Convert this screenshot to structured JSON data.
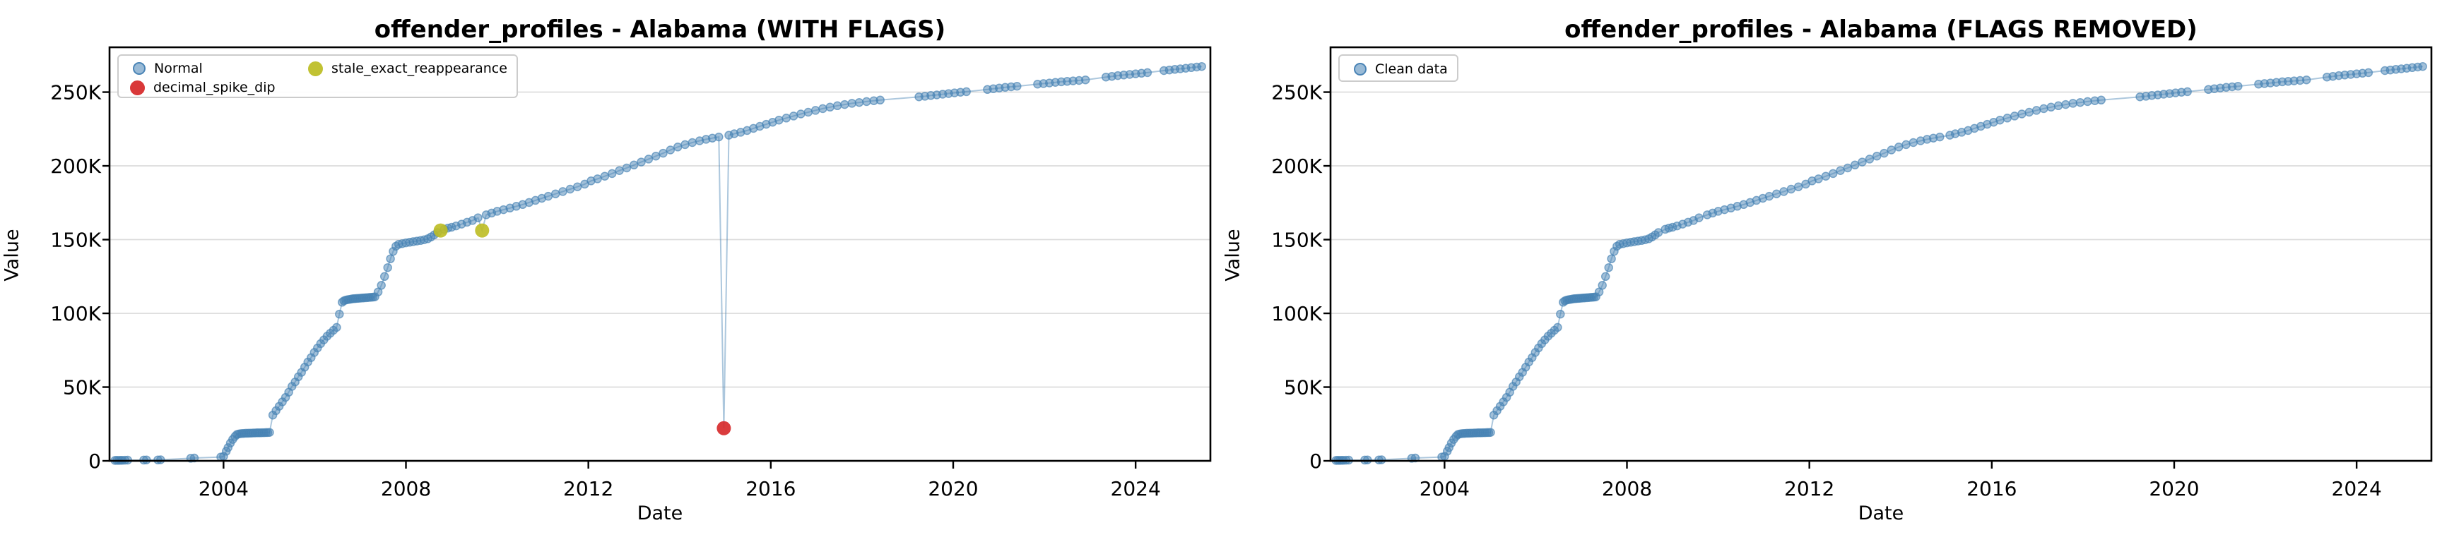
{
  "chart_data": {
    "type": "scatter",
    "xlabel": "Date",
    "ylabel": "Value",
    "x_range": [
      2001.5,
      2025.64
    ],
    "y_range_thousands": [
      0,
      280.4
    ],
    "grid": "horizontal-only",
    "legend_position": "upper-left",
    "x_ticks": [
      {
        "value": 2004,
        "label": "2004"
      },
      {
        "value": 2008,
        "label": "2008"
      },
      {
        "value": 2012,
        "label": "2012"
      },
      {
        "value": 2016,
        "label": "2016"
      },
      {
        "value": 2020,
        "label": "2020"
      },
      {
        "value": 2024,
        "label": "2024"
      }
    ],
    "y_ticks": [
      {
        "value": 0,
        "label": "0"
      },
      {
        "value": 50,
        "label": "50K"
      },
      {
        "value": 100,
        "label": "100K"
      },
      {
        "value": 150,
        "label": "150K"
      },
      {
        "value": 200,
        "label": "200K"
      },
      {
        "value": 250,
        "label": "250K"
      }
    ],
    "colors": {
      "normal": "#4682b4",
      "decimal_spike_dip": "#d62728",
      "stale_exact_reappearance": "#bcbd22",
      "line": "#4682b4",
      "grid": "#dcdcdc",
      "spine": "#000000",
      "text": "#000000",
      "legend_border": "#cccccc"
    },
    "points_thousands": [
      [
        2001.62,
        0.3
      ],
      [
        2001.66,
        0.35
      ],
      [
        2001.7,
        0.3
      ],
      [
        2001.74,
        0.4
      ],
      [
        2001.78,
        0.35
      ],
      [
        2001.84,
        0.45
      ],
      [
        2001.9,
        0.5
      ],
      [
        2002.25,
        0.55
      ],
      [
        2002.31,
        0.6
      ],
      [
        2002.56,
        0.6
      ],
      [
        2002.62,
        0.7
      ],
      [
        2003.28,
        1.7
      ],
      [
        2003.36,
        1.9
      ],
      [
        2003.94,
        2.6
      ],
      [
        2004.0,
        3.0
      ],
      [
        2004.06,
        6.5
      ],
      [
        2004.1,
        9.0
      ],
      [
        2004.15,
        12.0
      ],
      [
        2004.2,
        14.5
      ],
      [
        2004.25,
        16.5
      ],
      [
        2004.29,
        17.8
      ],
      [
        2004.33,
        18.2
      ],
      [
        2004.37,
        18.4
      ],
      [
        2004.41,
        18.5
      ],
      [
        2004.45,
        18.6
      ],
      [
        2004.49,
        18.7
      ],
      [
        2004.53,
        18.7
      ],
      [
        2004.57,
        18.8
      ],
      [
        2004.61,
        18.8
      ],
      [
        2004.65,
        18.9
      ],
      [
        2004.69,
        18.9
      ],
      [
        2004.73,
        19.0
      ],
      [
        2004.77,
        19.0
      ],
      [
        2004.81,
        19.0
      ],
      [
        2004.85,
        19.1
      ],
      [
        2004.89,
        19.1
      ],
      [
        2004.93,
        19.2
      ],
      [
        2004.97,
        19.2
      ],
      [
        2005.01,
        19.3
      ],
      [
        2005.08,
        31.0
      ],
      [
        2005.15,
        34.0
      ],
      [
        2005.22,
        37.0
      ],
      [
        2005.29,
        40.0
      ],
      [
        2005.36,
        43.0
      ],
      [
        2005.43,
        46.5
      ],
      [
        2005.5,
        50.5
      ],
      [
        2005.57,
        53.5
      ],
      [
        2005.64,
        57.0
      ],
      [
        2005.71,
        60.0
      ],
      [
        2005.78,
        63.5
      ],
      [
        2005.85,
        67.0
      ],
      [
        2005.92,
        70.0
      ],
      [
        2005.99,
        73.5
      ],
      [
        2006.06,
        76.5
      ],
      [
        2006.13,
        79.5
      ],
      [
        2006.2,
        82.0
      ],
      [
        2006.27,
        84.5
      ],
      [
        2006.34,
        86.5
      ],
      [
        2006.41,
        88.5
      ],
      [
        2006.48,
        90.5
      ],
      [
        2006.54,
        99.5
      ],
      [
        2006.6,
        107.5
      ],
      [
        2006.64,
        108.5
      ],
      [
        2006.68,
        109.0
      ],
      [
        2006.72,
        109.3
      ],
      [
        2006.76,
        109.5
      ],
      [
        2006.8,
        109.7
      ],
      [
        2006.84,
        109.9
      ],
      [
        2006.88,
        110.0
      ],
      [
        2006.92,
        110.1
      ],
      [
        2006.96,
        110.2
      ],
      [
        2007.0,
        110.3
      ],
      [
        2007.04,
        110.4
      ],
      [
        2007.08,
        110.5
      ],
      [
        2007.12,
        110.6
      ],
      [
        2007.16,
        110.7
      ],
      [
        2007.2,
        110.8
      ],
      [
        2007.24,
        110.9
      ],
      [
        2007.28,
        111.0
      ],
      [
        2007.32,
        111.2
      ],
      [
        2007.39,
        114.5
      ],
      [
        2007.46,
        119.0
      ],
      [
        2007.53,
        125.0
      ],
      [
        2007.6,
        131.0
      ],
      [
        2007.66,
        137.0
      ],
      [
        2007.72,
        142.0
      ],
      [
        2007.78,
        145.5
      ],
      [
        2007.84,
        146.8
      ],
      [
        2007.92,
        147.3
      ],
      [
        2008.0,
        147.8
      ],
      [
        2008.08,
        148.2
      ],
      [
        2008.16,
        148.6
      ],
      [
        2008.24,
        149.0
      ],
      [
        2008.32,
        149.4
      ],
      [
        2008.4,
        149.9
      ],
      [
        2008.48,
        150.6
      ],
      [
        2008.55,
        151.8
      ],
      [
        2008.62,
        153.2
      ],
      [
        2008.69,
        154.8
      ],
      [
        2008.84,
        157.0
      ],
      [
        2008.92,
        157.8
      ],
      [
        2009.0,
        158.4
      ],
      [
        2009.1,
        159.3
      ],
      [
        2009.22,
        160.5
      ],
      [
        2009.34,
        161.8
      ],
      [
        2009.46,
        163.0
      ],
      [
        2009.58,
        164.8
      ],
      [
        2009.76,
        166.8
      ],
      [
        2009.88,
        168.0
      ],
      [
        2010.0,
        169.2
      ],
      [
        2010.14,
        170.3
      ],
      [
        2010.28,
        171.4
      ],
      [
        2010.42,
        172.6
      ],
      [
        2010.56,
        173.8
      ],
      [
        2010.7,
        175.2
      ],
      [
        2010.84,
        176.6
      ],
      [
        2010.98,
        178.0
      ],
      [
        2011.12,
        179.4
      ],
      [
        2011.28,
        181.0
      ],
      [
        2011.44,
        182.6
      ],
      [
        2011.6,
        184.2
      ],
      [
        2011.76,
        185.8
      ],
      [
        2011.92,
        187.6
      ],
      [
        2012.06,
        189.8
      ],
      [
        2012.2,
        191.2
      ],
      [
        2012.36,
        193.0
      ],
      [
        2012.52,
        194.8
      ],
      [
        2012.68,
        196.8
      ],
      [
        2012.84,
        198.6
      ],
      [
        2013.0,
        200.6
      ],
      [
        2013.16,
        202.6
      ],
      [
        2013.32,
        204.6
      ],
      [
        2013.48,
        206.6
      ],
      [
        2013.64,
        208.6
      ],
      [
        2013.8,
        210.8
      ],
      [
        2013.96,
        212.8
      ],
      [
        2014.12,
        214.4
      ],
      [
        2014.28,
        215.8
      ],
      [
        2014.44,
        217.0
      ],
      [
        2014.58,
        218.0
      ],
      [
        2014.72,
        218.8
      ],
      [
        2014.86,
        219.6
      ],
      [
        2015.08,
        220.8
      ],
      [
        2015.2,
        221.8
      ],
      [
        2015.34,
        222.8
      ],
      [
        2015.48,
        224.0
      ],
      [
        2015.62,
        225.4
      ],
      [
        2015.76,
        226.8
      ],
      [
        2015.9,
        228.2
      ],
      [
        2016.04,
        229.6
      ],
      [
        2016.18,
        231.0
      ],
      [
        2016.34,
        232.4
      ],
      [
        2016.5,
        233.8
      ],
      [
        2016.66,
        235.2
      ],
      [
        2016.82,
        236.4
      ],
      [
        2016.98,
        237.6
      ],
      [
        2017.14,
        238.8
      ],
      [
        2017.3,
        239.8
      ],
      [
        2017.46,
        240.8
      ],
      [
        2017.62,
        241.6
      ],
      [
        2017.78,
        242.4
      ],
      [
        2017.94,
        243.0
      ],
      [
        2018.1,
        243.6
      ],
      [
        2018.26,
        244.2
      ],
      [
        2018.4,
        244.6
      ],
      [
        2019.25,
        246.8
      ],
      [
        2019.38,
        247.2
      ],
      [
        2019.51,
        247.7
      ],
      [
        2019.64,
        248.1
      ],
      [
        2019.77,
        248.6
      ],
      [
        2019.9,
        249.0
      ],
      [
        2020.03,
        249.5
      ],
      [
        2020.16,
        249.9
      ],
      [
        2020.29,
        250.3
      ],
      [
        2020.75,
        251.8
      ],
      [
        2020.88,
        252.3
      ],
      [
        2021.01,
        252.8
      ],
      [
        2021.14,
        253.2
      ],
      [
        2021.27,
        253.6
      ],
      [
        2021.4,
        254.0
      ],
      [
        2021.85,
        255.4
      ],
      [
        2021.98,
        255.8
      ],
      [
        2022.11,
        256.2
      ],
      [
        2022.24,
        256.6
      ],
      [
        2022.37,
        257.0
      ],
      [
        2022.5,
        257.3
      ],
      [
        2022.63,
        257.6
      ],
      [
        2022.76,
        257.9
      ],
      [
        2022.9,
        258.3
      ],
      [
        2023.35,
        260.2
      ],
      [
        2023.48,
        260.7
      ],
      [
        2023.61,
        261.2
      ],
      [
        2023.74,
        261.6
      ],
      [
        2023.87,
        262.0
      ],
      [
        2024.0,
        262.4
      ],
      [
        2024.13,
        262.8
      ],
      [
        2024.26,
        263.2
      ],
      [
        2024.62,
        264.6
      ],
      [
        2024.74,
        265.0
      ],
      [
        2024.86,
        265.4
      ],
      [
        2024.98,
        265.8
      ],
      [
        2025.1,
        266.2
      ],
      [
        2025.22,
        266.6
      ],
      [
        2025.34,
        267.0
      ],
      [
        2025.45,
        267.4
      ]
    ],
    "flagged_points": {
      "decimal_spike_dip": [
        [
          2014.97,
          22.1
        ]
      ],
      "stale_exact_reappearance": [
        [
          2008.76,
          156.2
        ],
        [
          2009.67,
          156.2
        ]
      ]
    },
    "charts": [
      {
        "id": "with-flags",
        "title": "offender_profiles - Alabama (WITH FLAGS)",
        "show_flags": true,
        "legend": {
          "normal_label": "Normal",
          "decimal_label": "decimal_spike_dip",
          "stale_label": "stale_exact_reappearance"
        }
      },
      {
        "id": "flags-removed",
        "title": "offender_profiles - Alabama (FLAGS REMOVED)",
        "show_flags": false,
        "legend": {
          "clean_label": "Clean data"
        }
      }
    ]
  }
}
